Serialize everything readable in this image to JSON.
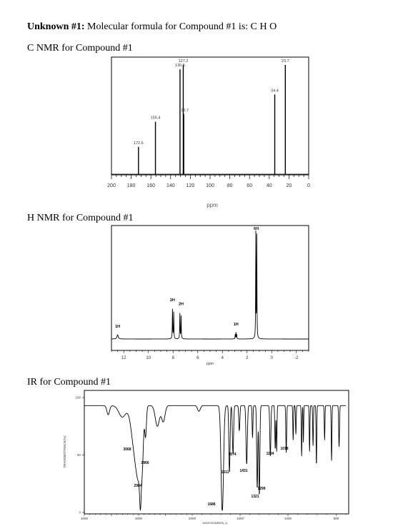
{
  "page": {
    "title_label": "Unknown #1:",
    "title_text": " Molecular formula for Compound #1 is: C H O"
  },
  "chart_data": [
    {
      "type": "spectrum-stick",
      "title": "C NMR for Compound #1",
      "x_ticks": [
        "200",
        "180",
        "160",
        "140",
        "120",
        "100",
        "80",
        "60",
        "40",
        "20",
        "0"
      ],
      "xlabel": "ppm",
      "xlim": [
        200,
        0
      ],
      "peaks": [
        {
          "ppm": 172.6,
          "height": 0.25,
          "label": "172.6"
        },
        {
          "ppm": 155.4,
          "height": 0.48,
          "label": "155.4"
        },
        {
          "ppm": 130.5,
          "height": 0.96,
          "label": "130.5"
        },
        {
          "ppm": 127.2,
          "height": 1.0,
          "label": "127.2"
        },
        {
          "ppm": 126.7,
          "height": 0.55,
          "label": "126.7"
        },
        {
          "ppm": 34.4,
          "height": 0.73,
          "label": "34.4"
        },
        {
          "ppm": 23.7,
          "height": 1.0,
          "label": "23.7"
        }
      ]
    },
    {
      "type": "spectrum-line",
      "title": "H NMR for Compound #1",
      "x_ticks": [
        "12",
        "10",
        "8",
        "6",
        "4",
        "2",
        "0",
        "-2"
      ],
      "xlabel": "ppm",
      "xlim": [
        13,
        -3
      ],
      "peaks": [
        {
          "ppm": 12.5,
          "height": 0.04,
          "label": "1H"
        },
        {
          "ppm": 8.0,
          "height": 0.28,
          "label": "2H"
        },
        {
          "ppm": 7.4,
          "height": 0.24,
          "label": "2H"
        },
        {
          "ppm": 2.9,
          "height": 0.06,
          "label": "1H"
        },
        {
          "ppm": 1.25,
          "height": 1.0,
          "label": "6H"
        }
      ]
    },
    {
      "type": "spectrum-line",
      "title": "IR for Compound #1",
      "ylabel": "TRANSMITTANCE(%)",
      "xlabel": "WAVENUMBER(-1)",
      "y_ticks": [
        "100",
        "50",
        "0"
      ],
      "x_ticks": [
        "4000",
        "3000",
        "2000",
        "1500",
        "1000",
        "500"
      ],
      "xlim": [
        4000,
        400
      ],
      "ylim": [
        0,
        100
      ],
      "peak_labels": [
        {
          "wavenumber": 3068,
          "label": "3068"
        },
        {
          "wavenumber": 2966,
          "label": "2966"
        },
        {
          "wavenumber": 2984,
          "label": "2984"
        },
        {
          "wavenumber": 1686,
          "label": "1686"
        },
        {
          "wavenumber": 1611,
          "label": "1611"
        },
        {
          "wavenumber": 1574,
          "label": "1574"
        },
        {
          "wavenumber": 1431,
          "label": "1431"
        },
        {
          "wavenumber": 1321,
          "label": "1321"
        },
        {
          "wavenumber": 1299,
          "label": "1299"
        },
        {
          "wavenumber": 1184,
          "label": "1184"
        },
        {
          "wavenumber": 1018,
          "label": "1018"
        }
      ]
    }
  ]
}
